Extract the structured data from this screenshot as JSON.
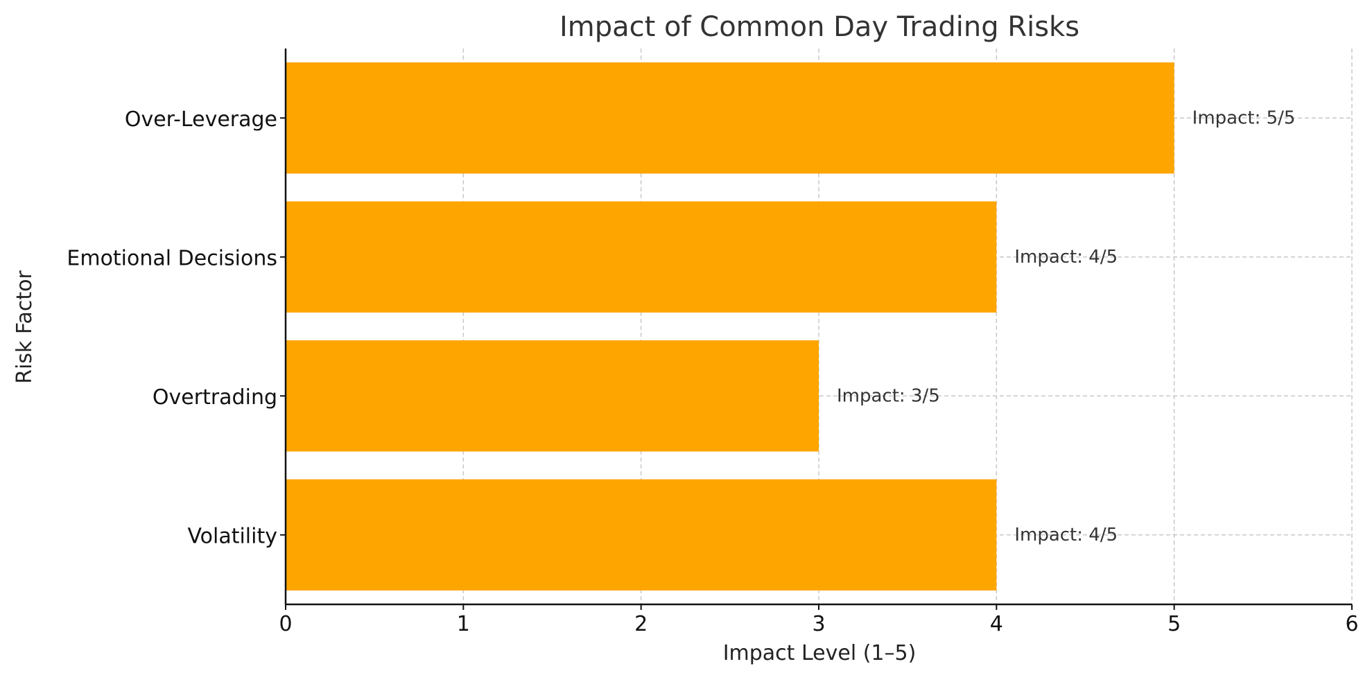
{
  "chart_data": {
    "type": "bar",
    "orientation": "horizontal",
    "title": "Impact of Common Day Trading Risks",
    "xlabel": "Impact Level (1–5)",
    "ylabel": "Risk Factor",
    "categories": [
      "Volatility",
      "Overtrading",
      "Emotional Decisions",
      "Over-Leverage"
    ],
    "values": [
      4,
      3,
      4,
      5
    ],
    "data_labels": [
      "Impact: 4/5",
      "Impact: 3/5",
      "Impact: 4/5",
      "Impact: 5/5"
    ],
    "xlim": [
      0,
      6
    ],
    "xticks": [
      0,
      1,
      2,
      3,
      4,
      5,
      6
    ],
    "grid": true,
    "bar_color": "#FFA500"
  }
}
